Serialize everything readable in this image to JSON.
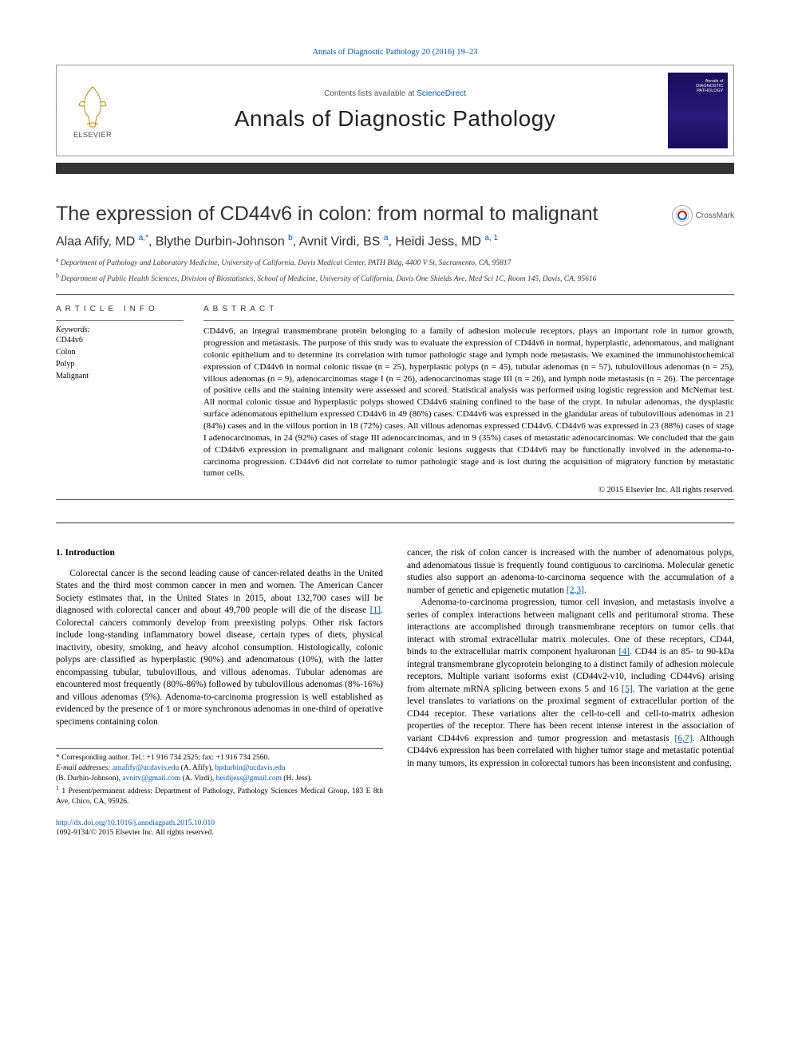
{
  "citation": {
    "text": "Annals of Diagnostic Pathology 20 (2016) 19–23",
    "url": "#"
  },
  "header": {
    "contents_prefix": "Contents lists available at ",
    "contents_link": "ScienceDirect",
    "journal": "Annals of Diagnostic Pathology",
    "publisher": "ELSEVIER",
    "cover_line1": "Annals of",
    "cover_line2": "DIAGNOSTIC",
    "cover_line3": "PATHOLOGY"
  },
  "crossmark": "CrossMark",
  "title": "The expression of CD44v6 in colon: from normal to malignant",
  "authors": "Alaa Afify, MD a,*, Blythe Durbin-Johnson b, Avnit Virdi, BS a, Heidi Jess, MD a, 1",
  "authors_parts": [
    {
      "name": "Alaa Afify, MD ",
      "sup": "a,*"
    },
    {
      "name": ", Blythe Durbin-Johnson ",
      "sup": "b"
    },
    {
      "name": ", Avnit Virdi, BS ",
      "sup": "a"
    },
    {
      "name": ", Heidi Jess, MD ",
      "sup": "a, 1"
    }
  ],
  "affiliations": [
    {
      "sup": "a",
      "text": " Department of Pathology and Laboratory Medicine, University of California, Davis Medical Center, PATH Bldg, 4400 V St, Sacramento, CA, 95817"
    },
    {
      "sup": "b",
      "text": " Department of Public Health Sciences, Division of Biostatistics, School of Medicine, University of California, Davis One Shields Ave, Med Sci 1C, Room 145, Davis, CA, 95616"
    }
  ],
  "info": {
    "head": "article info",
    "keywords_label": "Keywords:",
    "keywords": [
      "CD44v6",
      "Colon",
      "Polyp",
      "Malignant"
    ]
  },
  "abstract": {
    "head": "abstract",
    "text": "CD44v6, an integral transmembrane protein belonging to a family of adhesion molecule receptors, plays an important role in tumor growth, progression and metastasis. The purpose of this study was to evaluate the expression of CD44v6 in normal, hyperplastic, adenomatous, and malignant colonic epithelium and to determine its correlation with tumor pathologic stage and lymph node metastasis. We examined the immunohistochemical expression of CD44v6 in normal colonic tissue (n = 25), hyperplastic polyps (n = 45), tubular adenomas (n = 57), tubulovillous adenomas (n = 25), villous adenomas (n = 9), adenocarcinomas stage I (n = 26), adenocarcinomas stage III (n = 26), and lymph node metastasis (n = 26). The percentage of positive cells and the staining intensity were assessed and scored. Statistical analysis was performed using logistic regression and McNemar test. All normal colonic tissue and hyperplastic polyps showed CD44v6 staining confined to the base of the crypt. In tubular adenomas, the dysplastic surface adenomatous epithelium expressed CD44v6 in 49 (86%) cases. CD44v6 was expressed in the glandular areas of tubulovillous adenomas in 21 (84%) cases and in the villous portion in 18 (72%) cases. All villous adenomas expressed CD44v6. CD44v6 was expressed in 23 (88%) cases of stage I adenocarcinomas, in 24 (92%) cases of stage III adenocarcinomas, and in 9 (35%) cases of metastatic adenocarcinomas. We concluded that the gain of CD44v6 expression in premalignant and malignant colonic lesions suggests that CD44v6 may be functionally involved in the adenoma-to-carcinoma progression. CD44v6 did not correlate to tumor pathologic stage and is lost during the acquisition of migratory function by metastatic tumor cells.",
    "copyright": "© 2015 Elsevier Inc. All rights reserved."
  },
  "section1": {
    "head": "1. Introduction",
    "col1_p1a": "Colorectal cancer is the second leading cause of cancer-related deaths in the United States and the third most common cancer in men and women. The American Cancer Society estimates that, in the United States in 2015, about 132,700 cases will be diagnosed with colorectal cancer and about 49,700 people will die of the disease ",
    "col1_ref1": "[1]",
    "col1_p1b": ". Colorectal cancers commonly develop from preexisting polyps. Other risk factors include long-standing inflammatory bowel disease, certain types of diets, physical inactivity, obesity, smoking, and heavy alcohol consumption. Histologically, colonic polyps are classified as hyperplastic (90%) and adenomatous (10%), with the latter encompassing tubular, tubulovillous, and villous adenomas. Tubular adenomas are encountered most frequently (80%-86%) followed by tubulovillous adenomas (8%-16%) and villous adenomas (5%). Adenoma-to-carcinoma progression is well established as evidenced by the presence of 1 or more synchronous adenomas in one-third of operative specimens containing colon",
    "col2_p1a": "cancer, the risk of colon cancer is increased with the number of adenomatous polyps, and adenomatous tissue is frequently found contiguous to carcinoma. Molecular genetic studies also support an adenoma-to-carcinoma sequence with the accumulation of a number of genetic and epigenetic mutation ",
    "col2_ref23": "[2,3]",
    "col2_p1b": ".",
    "col2_p2a": "Adenoma-to-carcinoma progression, tumor cell invasion, and metastasis involve a series of complex interactions between malignant cells and peritumoral stroma. These interactions are accomplished through transmembrane receptors on tumor cells that interact with stromal extracellular matrix molecules. One of these receptors, CD44, binds to the extracellular matrix component hyaluronan ",
    "col2_ref4": "[4]",
    "col2_p2b": ". CD44 is an 85- to 90-kDa integral transmembrane glycoprotein belonging to a distinct family of adhesion molecule receptors. Multiple variant isoforms exist (CD44v2-v10, including CD44v6) arising from alternate mRNA splicing between exons 5 and 16 ",
    "col2_ref5": "[5]",
    "col2_p2c": ". The variation at the gene level translates to variations on the proximal segment of extracellular portion of the CD44 receptor. These variations alter the cell-to-cell and cell-to-matrix adhesion properties of the receptor. There has been recent intense interest in the association of variant CD44v6 expression and tumor progression and metastasis ",
    "col2_ref67": "[6,7]",
    "col2_p2d": ". Although CD44v6 expression has been correlated with higher tumor stage and metastatic potential in many tumors, its expression in colorectal tumors has been inconsistent and confusing."
  },
  "footnotes": {
    "corr": "* Corresponding author. Tel.: +1 916 734 2525; fax: +1 916 734 2560.",
    "email_label": "E-mail addresses: ",
    "emails": [
      {
        "addr": "amafify@ucdavis.edu",
        "who": " (A. Afify), "
      },
      {
        "addr": "bpdurbin@ucdavis.edu",
        "who": ""
      }
    ],
    "emails2_prefix": "(B. Durbin-Johnson), ",
    "emails2": [
      {
        "addr": "avnitv@gmail.com",
        "who": " (A. Virdi), "
      },
      {
        "addr": "heidijess@gmail.com",
        "who": " (H. Jess)."
      }
    ],
    "note1": "1 Present/permanent address: Department of Pathology, Pathology Sciences Medical Group, 183 E 8th Ave, Chico, CA, 95926."
  },
  "doi": {
    "url": "http://dx.doi.org/10.1016/j.anndiagpath.2015.10.010",
    "issn": "1092-9134/© 2015 Elsevier Inc. All rights reserved."
  },
  "colors": {
    "link": "#0056b3",
    "rule": "#333333",
    "cover_bg": "#1a0d5c"
  }
}
